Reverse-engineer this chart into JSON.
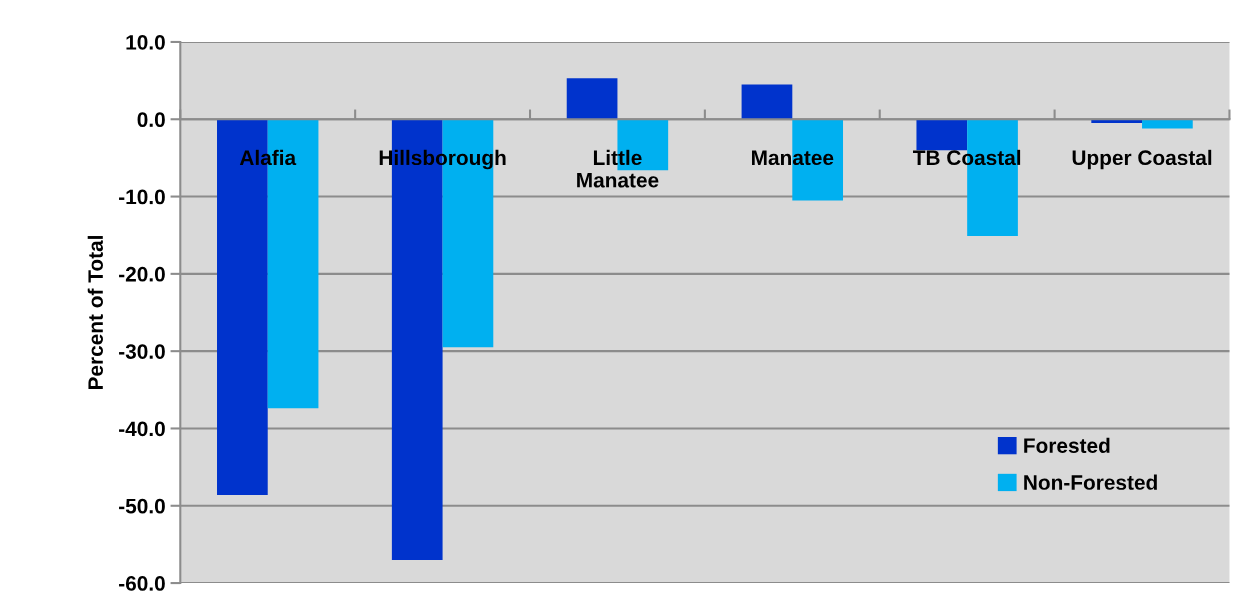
{
  "chart_data": {
    "type": "bar",
    "ylabel": "Percent of Total",
    "categories": [
      "Alafia",
      "Hillsborough",
      "Little\nManatee",
      "Manatee",
      "TB Coastal",
      "Upper Coastal"
    ],
    "series": [
      {
        "name": "Forested",
        "color": "#0033cc",
        "values": [
          -48.6,
          -57.0,
          5.3,
          4.5,
          -4.0,
          -0.5
        ]
      },
      {
        "name": "Non-Forested",
        "color": "#00b0f0",
        "values": [
          -37.4,
          -29.5,
          -6.6,
          -10.5,
          -15.1,
          -1.2
        ]
      }
    ],
    "ylim": [
      -60,
      10
    ],
    "yticks": [
      {
        "value": 10,
        "label": "10.0"
      },
      {
        "value": 0,
        "label": "0.0"
      },
      {
        "value": -10,
        "label": "-10.0"
      },
      {
        "value": -20,
        "label": "-20.0"
      },
      {
        "value": -30,
        "label": "-30.0"
      },
      {
        "value": -40,
        "label": "-40.0"
      },
      {
        "value": -50,
        "label": "-50.0"
      },
      {
        "value": -60,
        "label": "-60.0"
      }
    ],
    "grid": "y",
    "legend": "bottom right"
  }
}
